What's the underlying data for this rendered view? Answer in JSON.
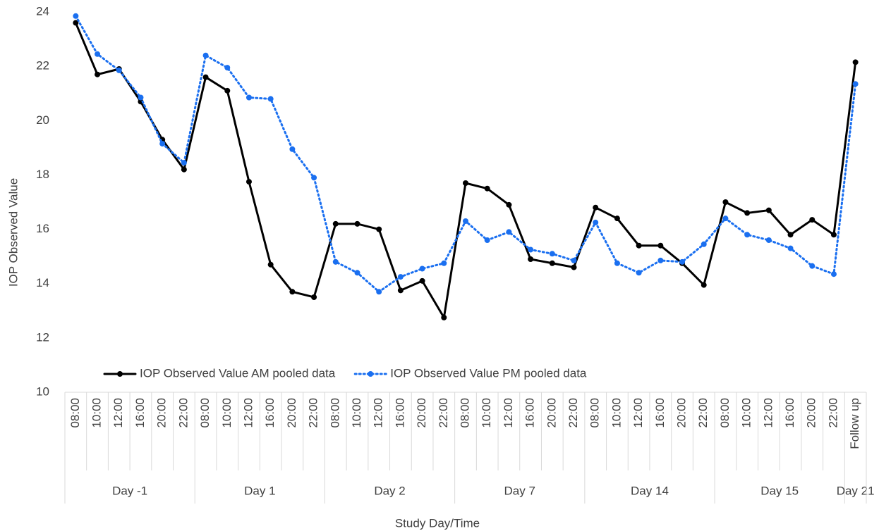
{
  "chart_data": {
    "type": "line",
    "y_label": "IOP Observed Value",
    "x_label": "Study Day/Time",
    "category_groups": [
      {
        "name": "Day -1",
        "categories": [
          "08:00",
          "10:00",
          "12:00",
          "16:00",
          "20:00",
          "22:00"
        ]
      },
      {
        "name": "Day 1",
        "categories": [
          "08:00",
          "10:00",
          "12:00",
          "16:00",
          "20:00",
          "22:00"
        ]
      },
      {
        "name": "Day 2",
        "categories": [
          "08:00",
          "10:00",
          "12:00",
          "16:00",
          "20:00",
          "22:00"
        ]
      },
      {
        "name": "Day 7",
        "categories": [
          "08:00",
          "10:00",
          "12:00",
          "16:00",
          "20:00",
          "22:00"
        ]
      },
      {
        "name": "Day 14",
        "categories": [
          "08:00",
          "10:00",
          "12:00",
          "16:00",
          "20:00",
          "22:00"
        ]
      },
      {
        "name": "Day 15",
        "categories": [
          "08:00",
          "10:00",
          "12:00",
          "16:00",
          "20:00",
          "22:00"
        ]
      },
      {
        "name": "Day 21",
        "categories": [
          "Follow up"
        ]
      }
    ],
    "series": [
      {
        "name": "IOP Observed Value AM pooled data",
        "color": "#000000",
        "dash": "solid",
        "values": [
          23.6,
          21.7,
          21.9,
          20.7,
          19.3,
          18.2,
          21.6,
          21.1,
          17.75,
          14.7,
          13.7,
          13.5,
          16.2,
          16.2,
          16.0,
          13.75,
          14.1,
          12.75,
          17.7,
          17.5,
          16.9,
          14.9,
          14.75,
          14.6,
          16.8,
          16.4,
          15.4,
          15.4,
          14.75,
          13.95,
          17.0,
          16.6,
          16.7,
          15.8,
          16.35,
          15.8,
          22.15
        ]
      },
      {
        "name": "IOP Observed Value PM pooled data",
        "color": "#1a6ff0",
        "dash": "dotted",
        "values": [
          23.85,
          22.45,
          21.85,
          20.85,
          19.15,
          18.45,
          22.4,
          21.95,
          20.85,
          20.8,
          18.95,
          17.9,
          14.8,
          14.4,
          13.7,
          14.25,
          14.55,
          14.75,
          16.3,
          15.6,
          15.9,
          15.25,
          15.1,
          14.85,
          16.25,
          14.75,
          14.4,
          14.85,
          14.8,
          15.45,
          16.4,
          15.8,
          15.6,
          15.3,
          14.65,
          14.35,
          21.35
        ]
      }
    ],
    "ylim": [
      10,
      24
    ],
    "yticks": [
      10,
      12,
      14,
      16,
      18,
      20,
      22,
      24
    ],
    "grid": false,
    "legend": "bottom"
  }
}
